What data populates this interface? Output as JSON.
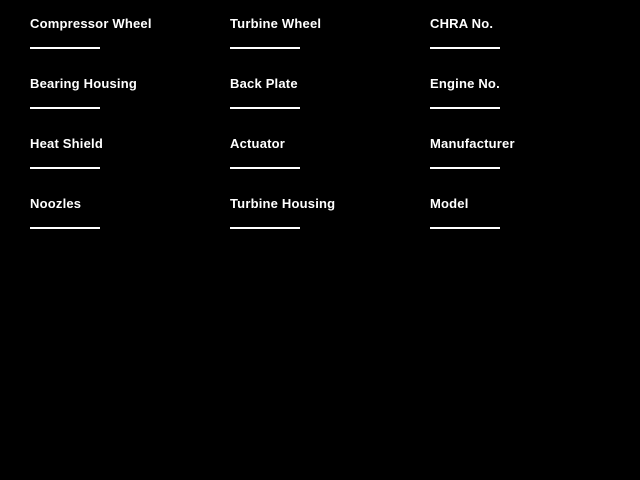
{
  "window": {
    "background_color": "#000000",
    "text_color": "#FFFFFF",
    "underline_color": "#FFFFFF"
  },
  "form": {
    "columns": [
      {
        "fields": [
          {
            "label": "Compressor Wheel",
            "value": ""
          },
          {
            "label": "Bearing Housing",
            "value": ""
          },
          {
            "label": "Heat Shield",
            "value": ""
          },
          {
            "label": "Noozles",
            "value": ""
          }
        ]
      },
      {
        "fields": [
          {
            "label": "Turbine Wheel",
            "value": ""
          },
          {
            "label": "Back Plate",
            "value": ""
          },
          {
            "label": "Actuator",
            "value": ""
          },
          {
            "label": "Turbine Housing",
            "value": ""
          }
        ]
      },
      {
        "fields": [
          {
            "label": "CHRA No.",
            "value": ""
          },
          {
            "label": "Engine No.",
            "value": ""
          },
          {
            "label": "Manufacturer",
            "value": ""
          },
          {
            "label": "Model",
            "value": ""
          }
        ]
      }
    ]
  }
}
